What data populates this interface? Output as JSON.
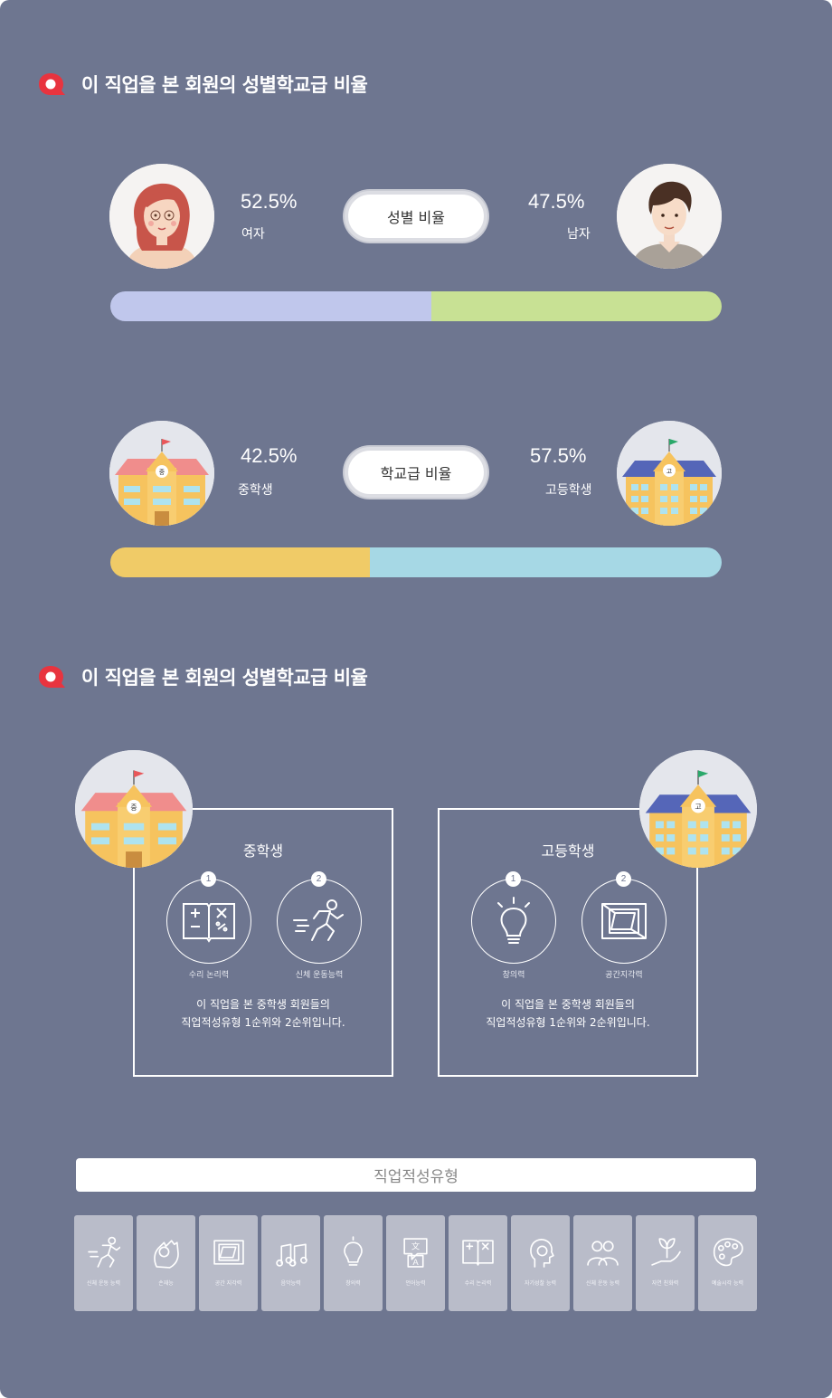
{
  "section1": {
    "title": "이 직업을 본 회원의 성별학교급 비율"
  },
  "gender": {
    "female_pct": "52.5%",
    "female_label": "여자",
    "male_pct": "47.5%",
    "male_label": "남자",
    "pill_label": "성별 비율",
    "female_fraction": 0.525,
    "male_fraction": 0.475,
    "female_color": "#c0c7ec",
    "male_color": "#c8e194"
  },
  "school": {
    "middle_pct": "42.5%",
    "middle_label": "중학생",
    "high_pct": "57.5%",
    "high_label": "고등학생",
    "pill_label": "학교급 비율",
    "middle_fraction": 0.425,
    "high_fraction": 0.575,
    "middle_color": "#f0cb67",
    "high_color": "#a6d8e5",
    "middle_badge": "중",
    "high_badge": "고"
  },
  "section2": {
    "title": "이 직업을 본 회원의 성별학교급 비율"
  },
  "cards": {
    "middle": {
      "title": "중학생",
      "rank1": "1",
      "rank1_label": "수리 논리력",
      "rank1_icon": "math-book-icon",
      "rank2": "2",
      "rank2_label": "신체 운동능력",
      "rank2_icon": "runner-icon",
      "desc_line1": "이 직업을 본 중학생 회원들의",
      "desc_line2": "직업적성유형 1순위와 2순위입니다."
    },
    "high": {
      "title": "고등학생",
      "rank1": "1",
      "rank1_label": "창의력",
      "rank1_icon": "lightbulb-icon",
      "rank2": "2",
      "rank2_label": "공간지각력",
      "rank2_icon": "cube-icon",
      "desc_line1": "이 직업을 본 중학생 회원들의",
      "desc_line2": "직업적성유형 1순위와 2순위입니다."
    }
  },
  "aptitude": {
    "title": "직업적성유형",
    "tiles": [
      {
        "label": "신체 운동 능력",
        "icon": "runner-icon"
      },
      {
        "label": "손재능",
        "icon": "hand-icon"
      },
      {
        "label": "공간 지각력",
        "icon": "cube-icon"
      },
      {
        "label": "음악능력",
        "icon": "music-icon"
      },
      {
        "label": "창의력",
        "icon": "lightbulb-icon"
      },
      {
        "label": "언어능력",
        "icon": "language-icon"
      },
      {
        "label": "수리 논리력",
        "icon": "math-book-icon"
      },
      {
        "label": "자기성찰 능력",
        "icon": "head-icon"
      },
      {
        "label": "신체 운동 능력",
        "icon": "people-icon"
      },
      {
        "label": "자연 친화력",
        "icon": "plant-hand-icon"
      },
      {
        "label": "예술시각 능력",
        "icon": "palette-icon"
      }
    ]
  }
}
